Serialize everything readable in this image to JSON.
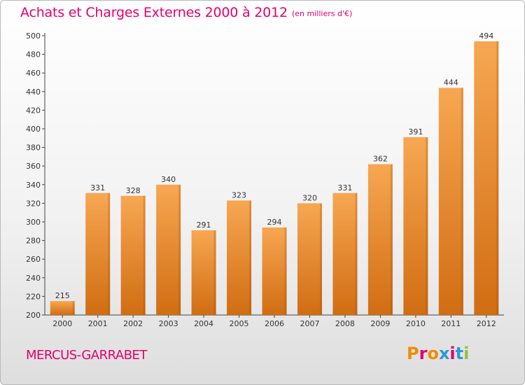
{
  "header": {
    "title": "Achats et Charges Externes 2000 à 2012",
    "unit": "(en milliers d'€)"
  },
  "footer": {
    "commune": "MERCUS-GARRABET",
    "logo_text": "Proxiti",
    "logo_colors": [
      "#f08c00",
      "#e3006e",
      "#f08c00",
      "#2a9ad6",
      "#e3006e",
      "#2a9ad6",
      "#8cc63f"
    ]
  },
  "colors": {
    "bar_light": "#f7a752",
    "bar_dark": "#d16d12",
    "accent": "#e3006e"
  },
  "chart_data": {
    "type": "bar",
    "title": "Achats et Charges Externes 2000 à 2012",
    "subtitle": "(en milliers d'€)",
    "xlabel": "",
    "ylabel": "",
    "categories": [
      "2000",
      "2001",
      "2002",
      "2003",
      "2004",
      "2005",
      "2006",
      "2007",
      "2008",
      "2009",
      "2010",
      "2011",
      "2012"
    ],
    "values": [
      215,
      331,
      328,
      340,
      291,
      323,
      294,
      320,
      331,
      362,
      391,
      444,
      494
    ],
    "ylim": [
      200,
      500
    ],
    "yticks": [
      200,
      220,
      240,
      260,
      280,
      300,
      320,
      340,
      360,
      380,
      400,
      420,
      440,
      460,
      480,
      500
    ],
    "grid": false,
    "data_labels": true
  }
}
